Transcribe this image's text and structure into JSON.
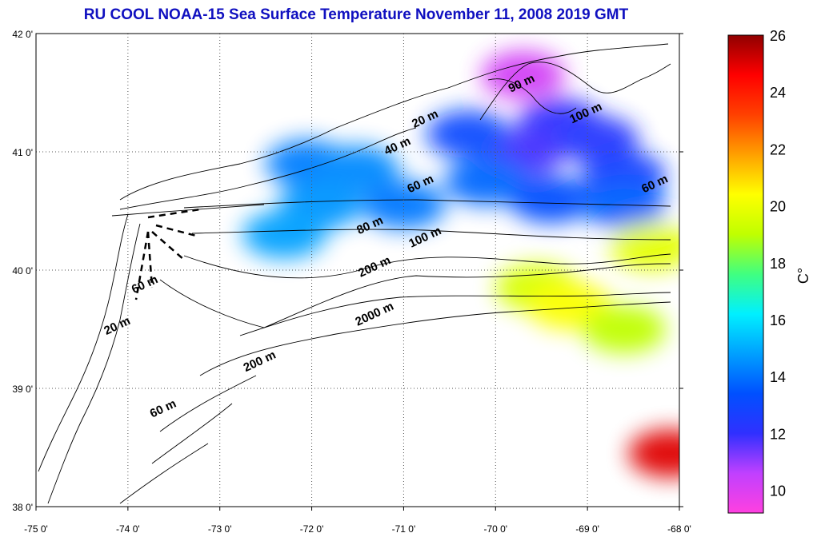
{
  "title": "RU COOL  NOAA-15 Sea Surface Temperature November 11, 2008 2019 GMT",
  "map": {
    "lon_labels": [
      "-75 0'",
      "-74 0'",
      "-73 0'",
      "-72 0'",
      "-71 0'",
      "-70 0'",
      "-69 0'",
      "-68 0'"
    ],
    "lat_labels": [
      "42 0'",
      "41 0'",
      "40 0'",
      "39 0'",
      "38 0'"
    ],
    "lon_range": [
      -75,
      -68
    ],
    "lat_range": [
      38,
      42
    ],
    "grid": "dotted",
    "contour_labels": [
      {
        "text": "20 m",
        "lon": -70.75,
        "lat": 41.25
      },
      {
        "text": "40 m",
        "lon": -71.05,
        "lat": 41.02
      },
      {
        "text": "90 m",
        "lon": -69.7,
        "lat": 41.55
      },
      {
        "text": "100 m",
        "lon": -69.0,
        "lat": 41.3
      },
      {
        "text": "60 m",
        "lon": -70.8,
        "lat": 40.7
      },
      {
        "text": "60 m",
        "lon": -68.25,
        "lat": 40.7
      },
      {
        "text": "80 m",
        "lon": -71.35,
        "lat": 40.35
      },
      {
        "text": "100 m",
        "lon": -70.75,
        "lat": 40.25
      },
      {
        "text": "200 m",
        "lon": -71.3,
        "lat": 40.0
      },
      {
        "text": "60 m",
        "lon": -73.8,
        "lat": 39.85
      },
      {
        "text": "2000 m",
        "lon": -71.3,
        "lat": 39.6
      },
      {
        "text": "20 m",
        "lon": -74.1,
        "lat": 39.5
      },
      {
        "text": "200 m",
        "lon": -72.55,
        "lat": 39.2
      },
      {
        "text": "60 m",
        "lon": -73.6,
        "lat": 38.8
      }
    ]
  },
  "colorbar": {
    "labels": [
      "26",
      "24",
      "22",
      "20",
      "18",
      "16",
      "14",
      "12",
      "10"
    ],
    "min": 9.2,
    "max": 26,
    "unit": "C°",
    "colors": [
      "#ff40e0",
      "#c040ff",
      "#3030ff",
      "#0050ff",
      "#00a0ff",
      "#00f0ff",
      "#40ff80",
      "#c0ff00",
      "#ffff00",
      "#ffa000",
      "#ff4000",
      "#ff0000",
      "#900000"
    ]
  },
  "sst_patches": [
    {
      "lon": -69.3,
      "lat": 41.25,
      "temp": 12.0
    },
    {
      "lon": -69.7,
      "lat": 41.0,
      "temp": 11.8
    },
    {
      "lon": -68.9,
      "lat": 41.1,
      "temp": 12.3
    },
    {
      "lon": -68.6,
      "lat": 40.8,
      "temp": 12.8
    },
    {
      "lon": -70.3,
      "lat": 41.15,
      "temp": 13.2
    },
    {
      "lon": -70.1,
      "lat": 40.75,
      "temp": 13.8
    },
    {
      "lon": -69.4,
      "lat": 40.6,
      "temp": 13.3
    },
    {
      "lon": -68.6,
      "lat": 40.55,
      "temp": 13.7
    },
    {
      "lon": -72.05,
      "lat": 40.9,
      "temp": 14.2
    },
    {
      "lon": -71.5,
      "lat": 40.85,
      "temp": 14.4
    },
    {
      "lon": -71.9,
      "lat": 40.55,
      "temp": 14.6
    },
    {
      "lon": -72.3,
      "lat": 40.3,
      "temp": 14.8
    },
    {
      "lon": -71.0,
      "lat": 40.55,
      "temp": 14.1
    },
    {
      "lon": -69.55,
      "lat": 39.85,
      "temp": 19.5
    },
    {
      "lon": -69.2,
      "lat": 39.7,
      "temp": 20.3
    },
    {
      "lon": -68.3,
      "lat": 40.2,
      "temp": 19.8
    },
    {
      "lon": -68.1,
      "lat": 38.45,
      "temp": 25.0
    },
    {
      "lon": -69.7,
      "lat": 41.65,
      "temp": 10.2
    },
    {
      "lon": -68.6,
      "lat": 39.5,
      "temp": 19.0
    }
  ]
}
